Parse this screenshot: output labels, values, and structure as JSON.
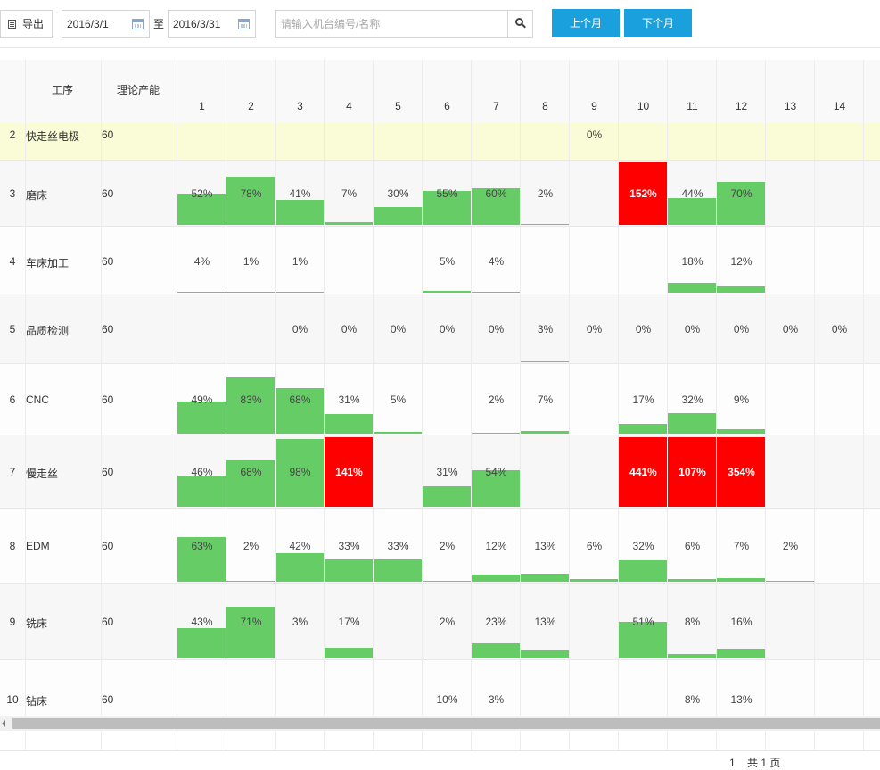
{
  "toolbar": {
    "export_label": "导出",
    "date_from": "2016/3/1",
    "date_separator": "至",
    "date_to": "2016/3/31",
    "search_placeholder": "请输入机台编号/名称",
    "prev_month_label": "上个月",
    "next_month_label": "下个月"
  },
  "table": {
    "header_process": "工序",
    "header_capacity": "理论产能",
    "days": [
      "1",
      "2",
      "3",
      "4",
      "5",
      "6",
      "7",
      "8",
      "9",
      "10",
      "11",
      "12",
      "13",
      "14"
    ],
    "rows": [
      {
        "num": "2",
        "name": "快走丝电极",
        "capacity": "60",
        "cells": [
          null,
          null,
          null,
          null,
          null,
          null,
          null,
          null,
          0,
          null,
          null,
          null,
          null,
          null
        ]
      },
      {
        "num": "3",
        "name": "磨床",
        "capacity": "60",
        "cells": [
          52,
          78,
          41,
          7,
          30,
          55,
          60,
          2,
          null,
          152,
          44,
          70,
          null,
          null
        ]
      },
      {
        "num": "4",
        "name": "车床加工",
        "capacity": "60",
        "cells": [
          4,
          1,
          1,
          null,
          null,
          5,
          4,
          null,
          null,
          null,
          18,
          12,
          null,
          null
        ]
      },
      {
        "num": "5",
        "name": "品质检测",
        "capacity": "60",
        "cells": [
          null,
          null,
          0,
          0,
          0,
          0,
          0,
          3,
          0,
          0,
          0,
          0,
          0,
          0
        ]
      },
      {
        "num": "6",
        "name": "CNC",
        "capacity": "60",
        "cells": [
          49,
          83,
          68,
          31,
          5,
          null,
          2,
          7,
          null,
          17,
          32,
          9,
          null,
          null
        ]
      },
      {
        "num": "7",
        "name": "慢走丝",
        "capacity": "60",
        "cells": [
          46,
          68,
          98,
          141,
          null,
          31,
          54,
          null,
          null,
          441,
          107,
          354,
          null,
          null
        ]
      },
      {
        "num": "8",
        "name": "EDM",
        "capacity": "60",
        "cells": [
          63,
          2,
          42,
          33,
          33,
          2,
          12,
          13,
          6,
          32,
          6,
          7,
          2,
          null
        ]
      },
      {
        "num": "9",
        "name": "铣床",
        "capacity": "60",
        "cells": [
          43,
          71,
          3,
          17,
          null,
          2,
          23,
          13,
          null,
          51,
          8,
          16,
          null,
          null
        ]
      },
      {
        "num": "10",
        "name": "钻床",
        "capacity": "60",
        "cells": [
          null,
          null,
          null,
          null,
          null,
          10,
          3,
          null,
          null,
          null,
          8,
          13,
          null,
          null
        ]
      }
    ]
  },
  "colors": {
    "normal": "#66cc66",
    "overload": "#ff0000",
    "highlight_row": "#fafcd8",
    "accent": "#1aa0dc"
  },
  "pager": {
    "current": "1",
    "total": "共 1 页"
  }
}
